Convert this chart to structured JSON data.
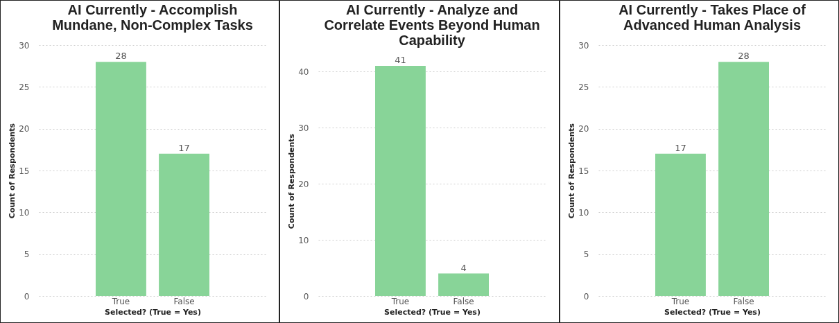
{
  "chart_data": [
    {
      "type": "bar",
      "title": "AI Currently - Accomplish Mundane, Non-Complex Tasks",
      "xlabel": "Selected? (True = Yes)",
      "ylabel": "Count of Respondents",
      "categories": [
        "True",
        "False"
      ],
      "values": [
        28,
        17
      ],
      "color": "#88d498",
      "ylim": [
        0,
        30
      ],
      "yticks": [
        0,
        5,
        10,
        15,
        20,
        25,
        30
      ],
      "grid": "y",
      "data_labels": true
    },
    {
      "type": "bar",
      "title": "AI Currently - Analyze and Correlate Events Beyond Human Capability",
      "xlabel": "Selected? (True = Yes)",
      "ylabel": "Count of Respondents",
      "categories": [
        "True",
        "False"
      ],
      "values": [
        41,
        4
      ],
      "color": "#88d498",
      "ylim": [
        0,
        41
      ],
      "yticks": [
        0,
        10,
        20,
        30,
        40
      ],
      "grid": "y",
      "data_labels": true
    },
    {
      "type": "bar",
      "title": "AI Currently - Takes Place of Advanced Human Analysis",
      "xlabel": "Selected? (True = Yes)",
      "ylabel": "Count of Respondents",
      "categories": [
        "True",
        "False"
      ],
      "values": [
        17,
        28
      ],
      "color": "#88d498",
      "ylim": [
        0,
        30
      ],
      "yticks": [
        0,
        5,
        10,
        15,
        20,
        25,
        30
      ],
      "grid": "y",
      "data_labels": true
    }
  ]
}
